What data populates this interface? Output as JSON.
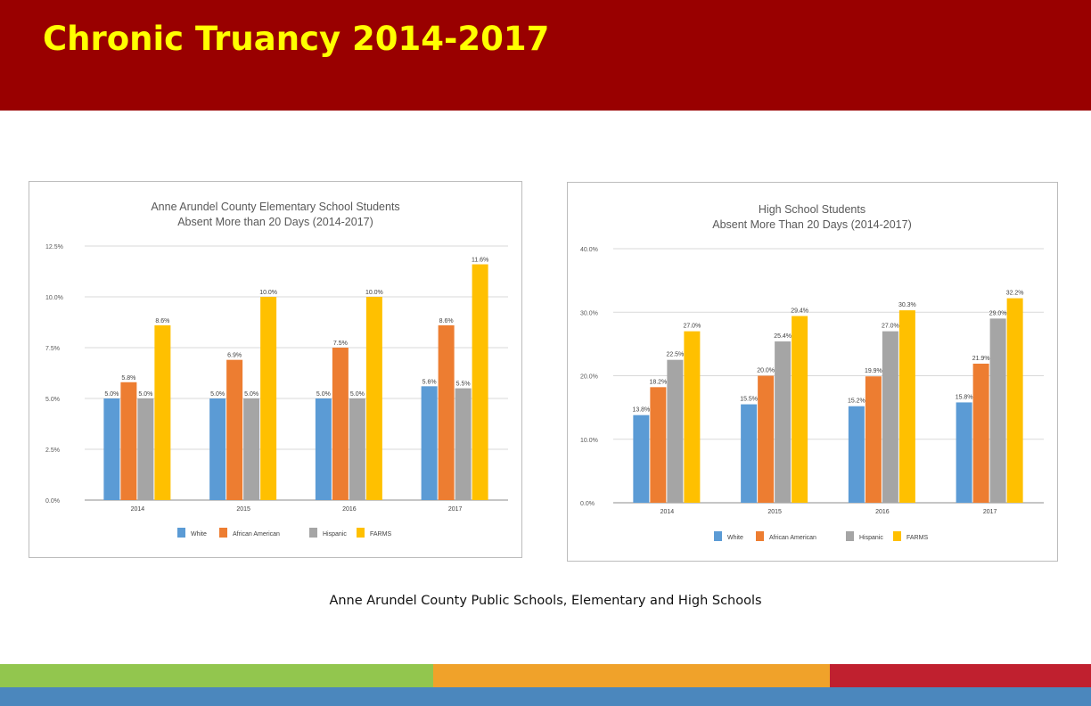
{
  "slide": {
    "title": "Chronic Truancy 2014-2017",
    "caption": "Anne Arundel County Public Schools, Elementary and High Schools"
  },
  "colors": {
    "header": "#990000",
    "title": "#ffff00",
    "footer": [
      "#92c64e",
      "#f0a22a",
      "#c0202f",
      "#4b87bd"
    ]
  },
  "chart_data": [
    {
      "type": "bar",
      "title": "Anne Arundel County Elementary School Students Absent More than 20 Days (2014-2017)",
      "title_lines": [
        "Anne Arundel County Elementary School Students",
        "Absent More than 20 Days (2014-2017)"
      ],
      "categories": [
        "2014",
        "2015",
        "2016",
        "2017"
      ],
      "series": [
        {
          "name": "White",
          "color": "#5b9bd5",
          "values": [
            5.0,
            5.0,
            5.0,
            5.6
          ],
          "labels": [
            "5.0%",
            "5.0%",
            "5.0%",
            "5.6%"
          ]
        },
        {
          "name": "African American",
          "color": "#ed7d31",
          "values": [
            5.8,
            6.9,
            7.5,
            8.6
          ],
          "labels": [
            "5.8%",
            "6.9%",
            "7.5%",
            "8.6%"
          ]
        },
        {
          "name": "Hispanic",
          "color": "#a5a5a5",
          "values": [
            5.0,
            5.0,
            5.0,
            5.5
          ],
          "labels": [
            "5.0%",
            "5.0%",
            "5.0%",
            "5.5%"
          ]
        },
        {
          "name": "FARMS",
          "color": "#ffc000",
          "values": [
            8.6,
            10.0,
            10.0,
            11.6
          ],
          "labels": [
            "8.6%",
            "10.0%",
            "10.0%",
            "11.6%"
          ]
        }
      ],
      "yticks": [
        0,
        2.5,
        5,
        7.5,
        10,
        12.5
      ],
      "ytick_labels": [
        "0.0%",
        "2.5%",
        "5.0%",
        "7.5%",
        "10.0%",
        "12.5%"
      ],
      "ylim": [
        0,
        12.5
      ],
      "xlabel": "",
      "ylabel": "",
      "grid": true,
      "legend": "bottom"
    },
    {
      "type": "bar",
      "title": "High School Students Absent More Than 20 Days (2014-2017)",
      "title_lines": [
        "High School Students",
        "Absent More Than 20 Days (2014-2017)"
      ],
      "categories": [
        "2014",
        "2015",
        "2016",
        "2017"
      ],
      "series": [
        {
          "name": "White",
          "color": "#5b9bd5",
          "values": [
            13.8,
            15.5,
            15.2,
            15.8
          ],
          "labels": [
            "13.8%",
            "15.5%",
            "15.2%",
            "15.8%"
          ]
        },
        {
          "name": "African American",
          "color": "#ed7d31",
          "values": [
            18.2,
            20.0,
            19.9,
            21.9
          ],
          "labels": [
            "18.2%",
            "20.0%",
            "19.9%",
            "21.9%"
          ]
        },
        {
          "name": "Hispanic",
          "color": "#a5a5a5",
          "values": [
            22.5,
            25.4,
            27.0,
            29.0
          ],
          "labels": [
            "22.5%",
            "25.4%",
            "27.0%",
            "29.0%"
          ]
        },
        {
          "name": "FARMS",
          "color": "#ffc000",
          "values": [
            27.0,
            29.4,
            30.3,
            32.2
          ],
          "labels": [
            "27.0%",
            "29.4%",
            "30.3%",
            "32.2%"
          ]
        }
      ],
      "yticks": [
        0,
        10,
        20,
        30,
        40
      ],
      "ytick_labels": [
        "0.0%",
        "10.0%",
        "20.0%",
        "30.0%",
        "40.0%"
      ],
      "ylim": [
        0,
        40
      ],
      "xlabel": "",
      "ylabel": "",
      "grid": true,
      "legend": "bottom"
    }
  ]
}
